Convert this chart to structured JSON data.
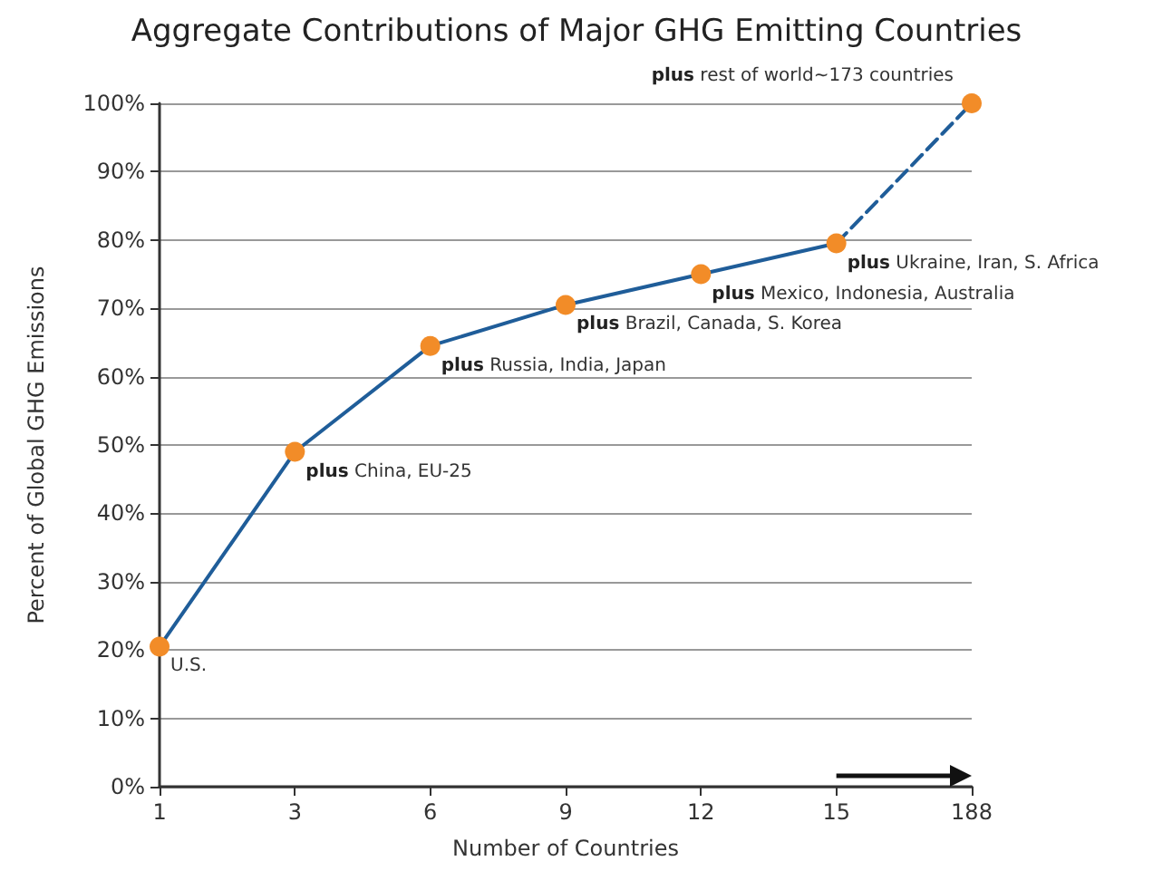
{
  "chart_data": {
    "type": "line",
    "title": "Aggregate Contributions of Major GHG Emitting Countries",
    "xlabel": "Number of Countries",
    "ylabel": "Percent of Global GHG Emissions",
    "categories": [
      "1",
      "3",
      "6",
      "9",
      "12",
      "15",
      "188"
    ],
    "series": [
      {
        "color": "#1f5d99",
        "colors": [
          "#f28c28",
          "#f28c28",
          "#f28c28",
          "#f28c28",
          "#f28c28",
          "#f28c28",
          null
        ],
        "values": [
          20.5,
          49,
          64.5,
          70.5,
          75,
          79.5,
          null
        ],
        "line_style": "solid"
      },
      {
        "color": "#1f5d99",
        "colors": [
          null,
          null,
          null,
          null,
          null,
          null,
          "#f28c28"
        ],
        "values": [
          null,
          null,
          null,
          null,
          null,
          79.5,
          100
        ],
        "line_style": "dashed"
      }
    ],
    "ylim": [
      0,
      100
    ],
    "yticks": [
      {
        "value": 0,
        "label": "0%"
      },
      {
        "value": 10,
        "label": "10%"
      },
      {
        "value": 20,
        "label": "20%"
      },
      {
        "value": 30,
        "label": "30%"
      },
      {
        "value": 40,
        "label": "40%"
      },
      {
        "value": 50,
        "label": "50%"
      },
      {
        "value": 60,
        "label": "60%"
      },
      {
        "value": 70,
        "label": "70%"
      },
      {
        "value": 80,
        "label": "80%"
      },
      {
        "value": 90,
        "label": "90%"
      },
      {
        "value": 100,
        "label": "100%"
      }
    ],
    "annotations": [
      {
        "text": "U.S.",
        "x": "1",
        "y": 20.5
      },
      {
        "text": "plus China, EU-25",
        "x": "3",
        "y": 49
      },
      {
        "text": "plus Russia, India, Japan",
        "x": "6",
        "y": 64.5
      },
      {
        "text": "plus Brazil, Canada, S. Korea",
        "x": "9",
        "y": 70.5
      },
      {
        "text": "plus Mexico, Indonesia, Australia",
        "x": "12",
        "y": 75
      },
      {
        "text": "plus Ukraine, Iran, S. Africa",
        "x": "15",
        "y": 79.5
      },
      {
        "text": "plus rest of world~173 countries",
        "x": "188",
        "y": 100
      }
    ],
    "grid": "y",
    "marker": "circle"
  }
}
